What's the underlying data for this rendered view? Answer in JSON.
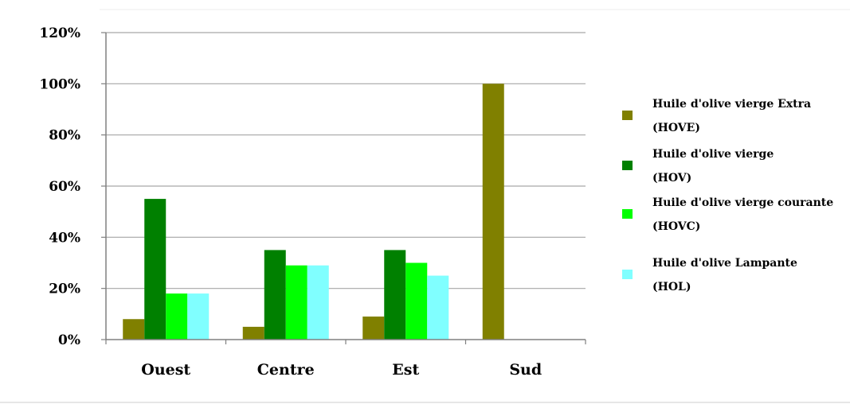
{
  "chart_data": {
    "type": "bar",
    "title": "",
    "xlabel": "",
    "ylabel": "",
    "categories": [
      "Ouest",
      "Centre",
      "Est",
      "Sud"
    ],
    "ylim": [
      0,
      120
    ],
    "yticks": [
      0,
      20,
      40,
      60,
      80,
      100,
      120
    ],
    "ytick_labels": [
      "0%",
      "20%",
      "40%",
      "60%",
      "80%",
      "100%",
      "120%"
    ],
    "grid": true,
    "legend_position": "right",
    "series": [
      {
        "name": "Huile d'olive vierge Extra (HOVE)",
        "legend_lines": [
          "Huile d'olive vierge Extra",
          "(HOVE)"
        ],
        "color": "#808000",
        "values": [
          8,
          5,
          9,
          100
        ]
      },
      {
        "name": "Huile d'olive vierge (HOV)",
        "legend_lines": [
          "Huile d'olive vierge",
          "(HOV)"
        ],
        "color": "#008000",
        "values": [
          55,
          35,
          35,
          0
        ]
      },
      {
        "name": "Huile d'olive vierge courante (HOVC)",
        "legend_lines": [
          "Huile d'olive vierge courante",
          "(HOVC)"
        ],
        "color": "#00ff00",
        "values": [
          18,
          29,
          30,
          0
        ]
      },
      {
        "name": "Huile d'olive Lampante (HOL)",
        "legend_lines": [
          "Huile d'olive Lampante",
          "(HOL)"
        ],
        "color": "#80ffff",
        "values": [
          18,
          29,
          25,
          0
        ]
      }
    ]
  }
}
